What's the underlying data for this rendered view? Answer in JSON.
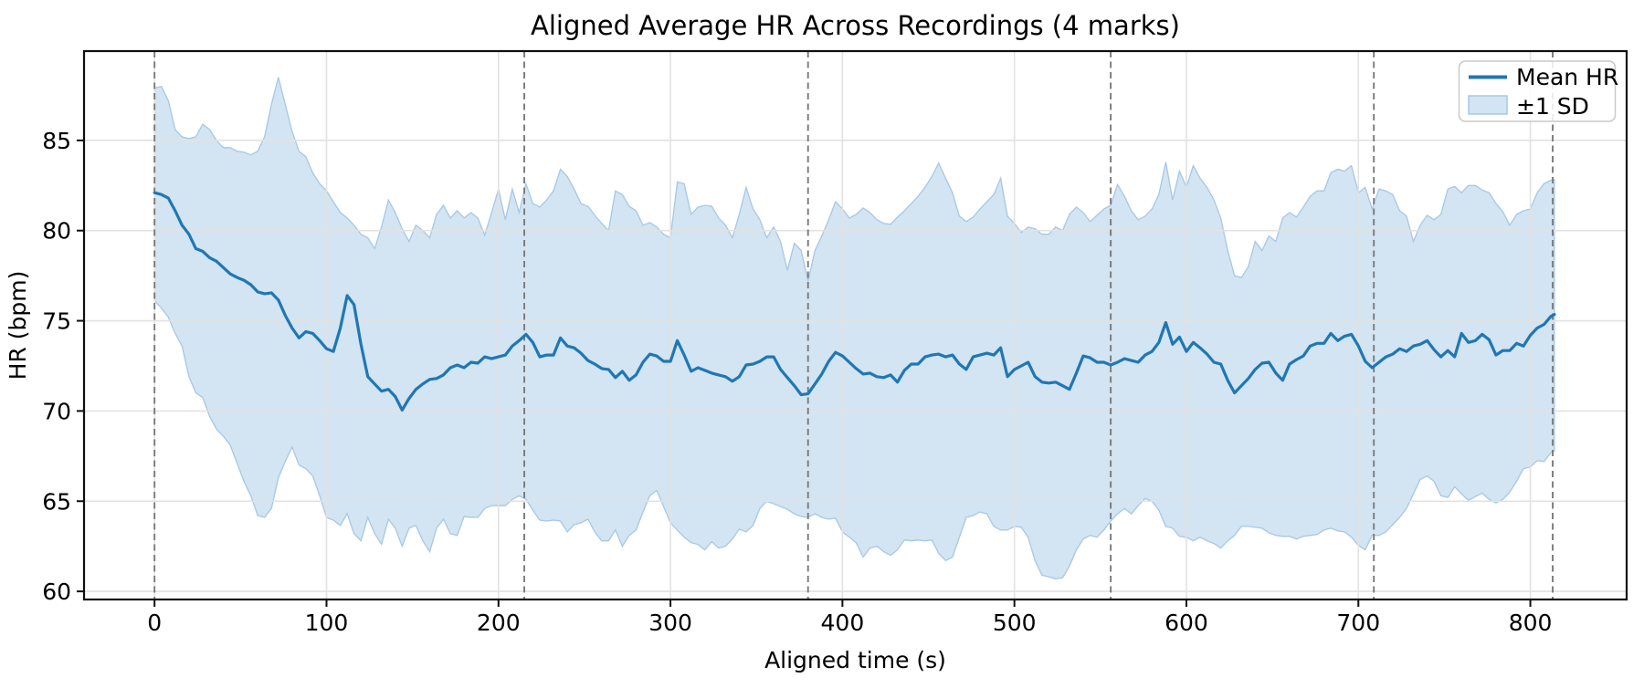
{
  "chart_data": {
    "type": "line",
    "title": "Aligned Average HR Across Recordings (4 marks)",
    "xlabel": "Aligned time (s)",
    "ylabel": "HR (bpm)",
    "xlim": [
      -41,
      856
    ],
    "ylim": [
      59.55,
      89.95
    ],
    "xticks": [
      0,
      100,
      200,
      300,
      400,
      500,
      600,
      700,
      800
    ],
    "yticks": [
      60,
      65,
      70,
      75,
      80,
      85
    ],
    "grid": true,
    "mark_vlines": [
      0,
      215,
      380,
      556,
      709,
      813
    ],
    "legend": {
      "position": "upper right",
      "entries": [
        {
          "label": "Mean HR",
          "type": "line"
        },
        {
          "label": "±1 SD",
          "type": "band"
        }
      ]
    },
    "colors": {
      "mean_line": "#1f77b4",
      "band_fill": "#d3e4f2",
      "band_edge": "#a6c8e5",
      "vline": "#7a7a7a",
      "grid": "#e2e2e2",
      "spine": "#0f0f0f",
      "legend_border": "#c9c9c9"
    },
    "t": [
      0,
      4,
      8,
      12,
      16,
      20,
      24,
      28,
      32,
      36,
      40,
      44,
      48,
      52,
      56,
      60,
      64,
      68,
      72,
      76,
      80,
      84,
      88,
      92,
      96,
      100,
      104,
      108,
      112,
      116,
      120,
      124,
      128,
      132,
      136,
      140,
      144,
      148,
      152,
      156,
      160,
      164,
      168,
      172,
      176,
      180,
      184,
      188,
      192,
      196,
      200,
      204,
      208,
      212,
      216,
      220,
      224,
      228,
      232,
      236,
      240,
      244,
      248,
      252,
      256,
      260,
      264,
      268,
      272,
      276,
      280,
      284,
      288,
      292,
      296,
      300,
      304,
      308,
      312,
      316,
      320,
      324,
      328,
      332,
      336,
      340,
      344,
      348,
      352,
      356,
      360,
      364,
      368,
      372,
      376,
      380,
      384,
      388,
      392,
      396,
      400,
      404,
      408,
      412,
      416,
      420,
      424,
      428,
      432,
      436,
      440,
      444,
      448,
      452,
      456,
      460,
      464,
      468,
      472,
      476,
      480,
      484,
      488,
      492,
      496,
      500,
      504,
      508,
      512,
      516,
      520,
      524,
      528,
      532,
      536,
      540,
      544,
      548,
      552,
      556,
      560,
      564,
      568,
      572,
      576,
      580,
      584,
      588,
      592,
      596,
      600,
      604,
      608,
      612,
      616,
      620,
      624,
      628,
      632,
      636,
      640,
      644,
      648,
      652,
      656,
      660,
      664,
      668,
      672,
      676,
      680,
      684,
      688,
      692,
      696,
      700,
      704,
      708,
      712,
      716,
      720,
      724,
      728,
      732,
      736,
      740,
      744,
      748,
      752,
      756,
      760,
      764,
      768,
      772,
      776,
      780,
      784,
      788,
      792,
      796,
      800,
      804,
      808,
      812,
      814
    ],
    "series": [
      {
        "name": "Mean HR",
        "values": [
          82.1,
          82.0,
          81.8,
          81.1,
          80.3,
          79.8,
          79.0,
          78.85,
          78.5,
          78.3,
          77.95,
          77.6,
          77.4,
          77.25,
          77.0,
          76.6,
          76.5,
          76.55,
          76.15,
          75.3,
          74.6,
          74.05,
          74.4,
          74.3,
          73.9,
          73.45,
          73.3,
          74.6,
          76.4,
          75.9,
          73.7,
          71.9,
          71.5,
          71.1,
          71.2,
          70.8,
          70.05,
          70.7,
          71.2,
          71.5,
          71.75,
          71.8,
          72.0,
          72.4,
          72.55,
          72.4,
          72.7,
          72.65,
          73.0,
          72.9,
          73.0,
          73.1,
          73.6,
          73.9,
          74.25,
          73.8,
          73.0,
          73.1,
          73.1,
          74.05,
          73.6,
          73.5,
          73.2,
          72.8,
          72.6,
          72.35,
          72.3,
          71.85,
          72.2,
          71.7,
          72.0,
          72.7,
          73.15,
          73.05,
          72.75,
          72.75,
          73.9,
          73.1,
          72.2,
          72.4,
          72.25,
          72.1,
          72.0,
          71.9,
          71.65,
          71.9,
          72.55,
          72.6,
          72.75,
          73.0,
          73.0,
          72.3,
          71.85,
          71.4,
          70.9,
          70.95,
          71.5,
          72.05,
          72.75,
          73.25,
          73.05,
          72.7,
          72.35,
          72.05,
          72.1,
          71.9,
          71.85,
          72.0,
          71.6,
          72.25,
          72.6,
          72.6,
          73.0,
          73.1,
          73.15,
          73.0,
          73.1,
          72.6,
          72.3,
          73.0,
          73.1,
          73.2,
          73.1,
          73.5,
          71.9,
          72.3,
          72.5,
          72.7,
          71.9,
          71.6,
          71.55,
          71.6,
          71.4,
          71.2,
          72.1,
          73.05,
          72.95,
          72.7,
          72.7,
          72.55,
          72.7,
          72.9,
          72.8,
          72.7,
          73.1,
          73.3,
          73.8,
          74.9,
          73.7,
          74.1,
          73.3,
          73.8,
          73.5,
          73.15,
          72.7,
          72.6,
          71.7,
          71.0,
          71.4,
          71.8,
          72.3,
          72.65,
          72.7,
          72.1,
          71.7,
          72.6,
          72.85,
          73.05,
          73.6,
          73.75,
          73.75,
          74.3,
          73.9,
          74.15,
          74.25,
          73.6,
          72.75,
          72.4,
          72.7,
          73.0,
          73.15,
          73.45,
          73.3,
          73.6,
          73.7,
          73.9,
          73.4,
          73.0,
          73.35,
          73.0,
          74.3,
          73.8,
          73.9,
          74.25,
          73.95,
          73.1,
          73.35,
          73.35,
          73.75,
          73.6,
          74.2,
          74.6,
          74.8,
          75.25,
          75.35
        ]
      },
      {
        "name": "+1 SD",
        "values": [
          87.9,
          88.0,
          87.2,
          85.6,
          85.2,
          85.1,
          85.2,
          85.9,
          85.6,
          85.0,
          84.6,
          84.6,
          84.4,
          84.35,
          84.2,
          84.4,
          85.2,
          87.0,
          88.5,
          87.0,
          85.5,
          84.4,
          84.1,
          83.2,
          82.6,
          82.2,
          81.6,
          81.0,
          80.7,
          80.3,
          79.8,
          79.6,
          79.0,
          80.2,
          81.7,
          81.0,
          80.1,
          79.4,
          80.3,
          80.0,
          79.6,
          80.9,
          81.4,
          80.7,
          81.1,
          80.7,
          81.0,
          80.7,
          79.75,
          81.0,
          82.3,
          80.6,
          82.3,
          81.0,
          82.6,
          81.5,
          81.3,
          81.7,
          82.2,
          83.4,
          83.0,
          82.3,
          81.5,
          81.35,
          80.85,
          80.4,
          80.0,
          82.2,
          82.0,
          81.35,
          81.1,
          80.3,
          80.45,
          80.2,
          79.8,
          79.6,
          82.7,
          82.6,
          80.9,
          81.3,
          81.4,
          81.35,
          80.7,
          80.3,
          79.6,
          80.9,
          82.4,
          81.2,
          80.6,
          79.6,
          80.2,
          79.4,
          77.8,
          79.3,
          78.9,
          77.2,
          78.9,
          79.7,
          80.6,
          81.6,
          81.2,
          80.7,
          80.9,
          81.25,
          81.0,
          80.6,
          80.4,
          80.35,
          80.75,
          81.1,
          81.5,
          81.9,
          82.4,
          83.0,
          83.75,
          82.9,
          82.1,
          80.8,
          80.5,
          80.75,
          81.2,
          81.6,
          82.0,
          82.9,
          80.8,
          80.4,
          79.9,
          80.2,
          80.1,
          79.8,
          79.8,
          80.2,
          80.0,
          80.9,
          81.3,
          81.0,
          80.5,
          80.85,
          81.2,
          81.4,
          82.55,
          81.9,
          81.1,
          80.6,
          80.8,
          81.2,
          82.0,
          83.8,
          81.7,
          83.3,
          82.4,
          83.6,
          82.9,
          82.4,
          81.7,
          80.7,
          78.9,
          77.5,
          77.4,
          78.0,
          79.4,
          78.9,
          79.7,
          79.4,
          80.7,
          81.0,
          80.75,
          81.3,
          81.9,
          82.2,
          82.2,
          83.2,
          83.4,
          83.3,
          83.6,
          82.1,
          82.4,
          81.2,
          82.3,
          82.2,
          82.0,
          81.1,
          80.8,
          79.4,
          80.3,
          80.85,
          80.6,
          80.9,
          82.3,
          82.45,
          82.1,
          82.5,
          82.5,
          82.25,
          82.1,
          81.5,
          81.05,
          80.3,
          80.9,
          81.1,
          81.2,
          82.1,
          82.6,
          82.8,
          82.85
        ]
      },
      {
        "name": "-1 SD",
        "values": [
          76.1,
          75.7,
          75.2,
          74.3,
          73.6,
          71.9,
          71.0,
          70.75,
          69.7,
          69.0,
          68.6,
          68.1,
          67.1,
          66.1,
          65.3,
          64.2,
          64.1,
          64.6,
          66.3,
          67.2,
          68.0,
          67.0,
          66.8,
          66.4,
          65.3,
          64.1,
          63.95,
          63.65,
          64.3,
          63.2,
          62.8,
          64.1,
          63.2,
          62.6,
          64.0,
          63.5,
          62.5,
          63.5,
          63.65,
          62.8,
          62.2,
          63.5,
          64.0,
          63.2,
          63.1,
          64.15,
          64.1,
          64.1,
          64.6,
          64.75,
          64.75,
          64.75,
          65.1,
          65.3,
          65.1,
          64.5,
          63.95,
          63.9,
          63.95,
          63.9,
          63.3,
          63.7,
          63.8,
          64.0,
          63.3,
          62.8,
          62.8,
          63.4,
          62.5,
          63.1,
          63.4,
          64.4,
          65.3,
          65.6,
          64.7,
          63.8,
          63.4,
          63.0,
          62.7,
          62.6,
          62.3,
          62.75,
          62.4,
          62.5,
          62.9,
          63.45,
          63.3,
          63.65,
          64.6,
          65.0,
          64.85,
          64.7,
          64.55,
          64.3,
          64.15,
          64.1,
          64.3,
          64.1,
          64.0,
          64.05,
          63.3,
          63.0,
          62.7,
          61.9,
          62.4,
          62.5,
          62.2,
          62.0,
          62.3,
          62.85,
          62.8,
          62.85,
          62.8,
          62.85,
          62.1,
          61.7,
          61.9,
          63.0,
          64.1,
          64.2,
          64.4,
          64.3,
          63.6,
          63.4,
          63.4,
          63.6,
          63.55,
          63.0,
          61.7,
          60.9,
          60.8,
          60.7,
          60.75,
          61.4,
          62.3,
          62.9,
          63.1,
          63.0,
          63.4,
          63.9,
          64.3,
          64.6,
          64.3,
          64.75,
          65.15,
          65.0,
          64.5,
          63.6,
          63.5,
          63.05,
          63.0,
          62.8,
          63.0,
          62.8,
          62.65,
          62.4,
          62.8,
          63.1,
          63.6,
          63.6,
          63.55,
          63.5,
          63.25,
          63.1,
          63.05,
          63.05,
          62.9,
          63.05,
          63.1,
          63.15,
          63.4,
          63.5,
          63.35,
          63.3,
          63.0,
          62.55,
          62.3,
          63.1,
          63.1,
          63.3,
          63.7,
          64.1,
          64.6,
          65.4,
          66.2,
          66.4,
          66.1,
          65.3,
          65.2,
          65.8,
          65.4,
          65.05,
          65.25,
          65.45,
          65.1,
          64.9,
          65.1,
          65.5,
          66.1,
          66.8,
          66.9,
          67.25,
          67.2,
          67.7,
          67.75
        ]
      }
    ]
  }
}
